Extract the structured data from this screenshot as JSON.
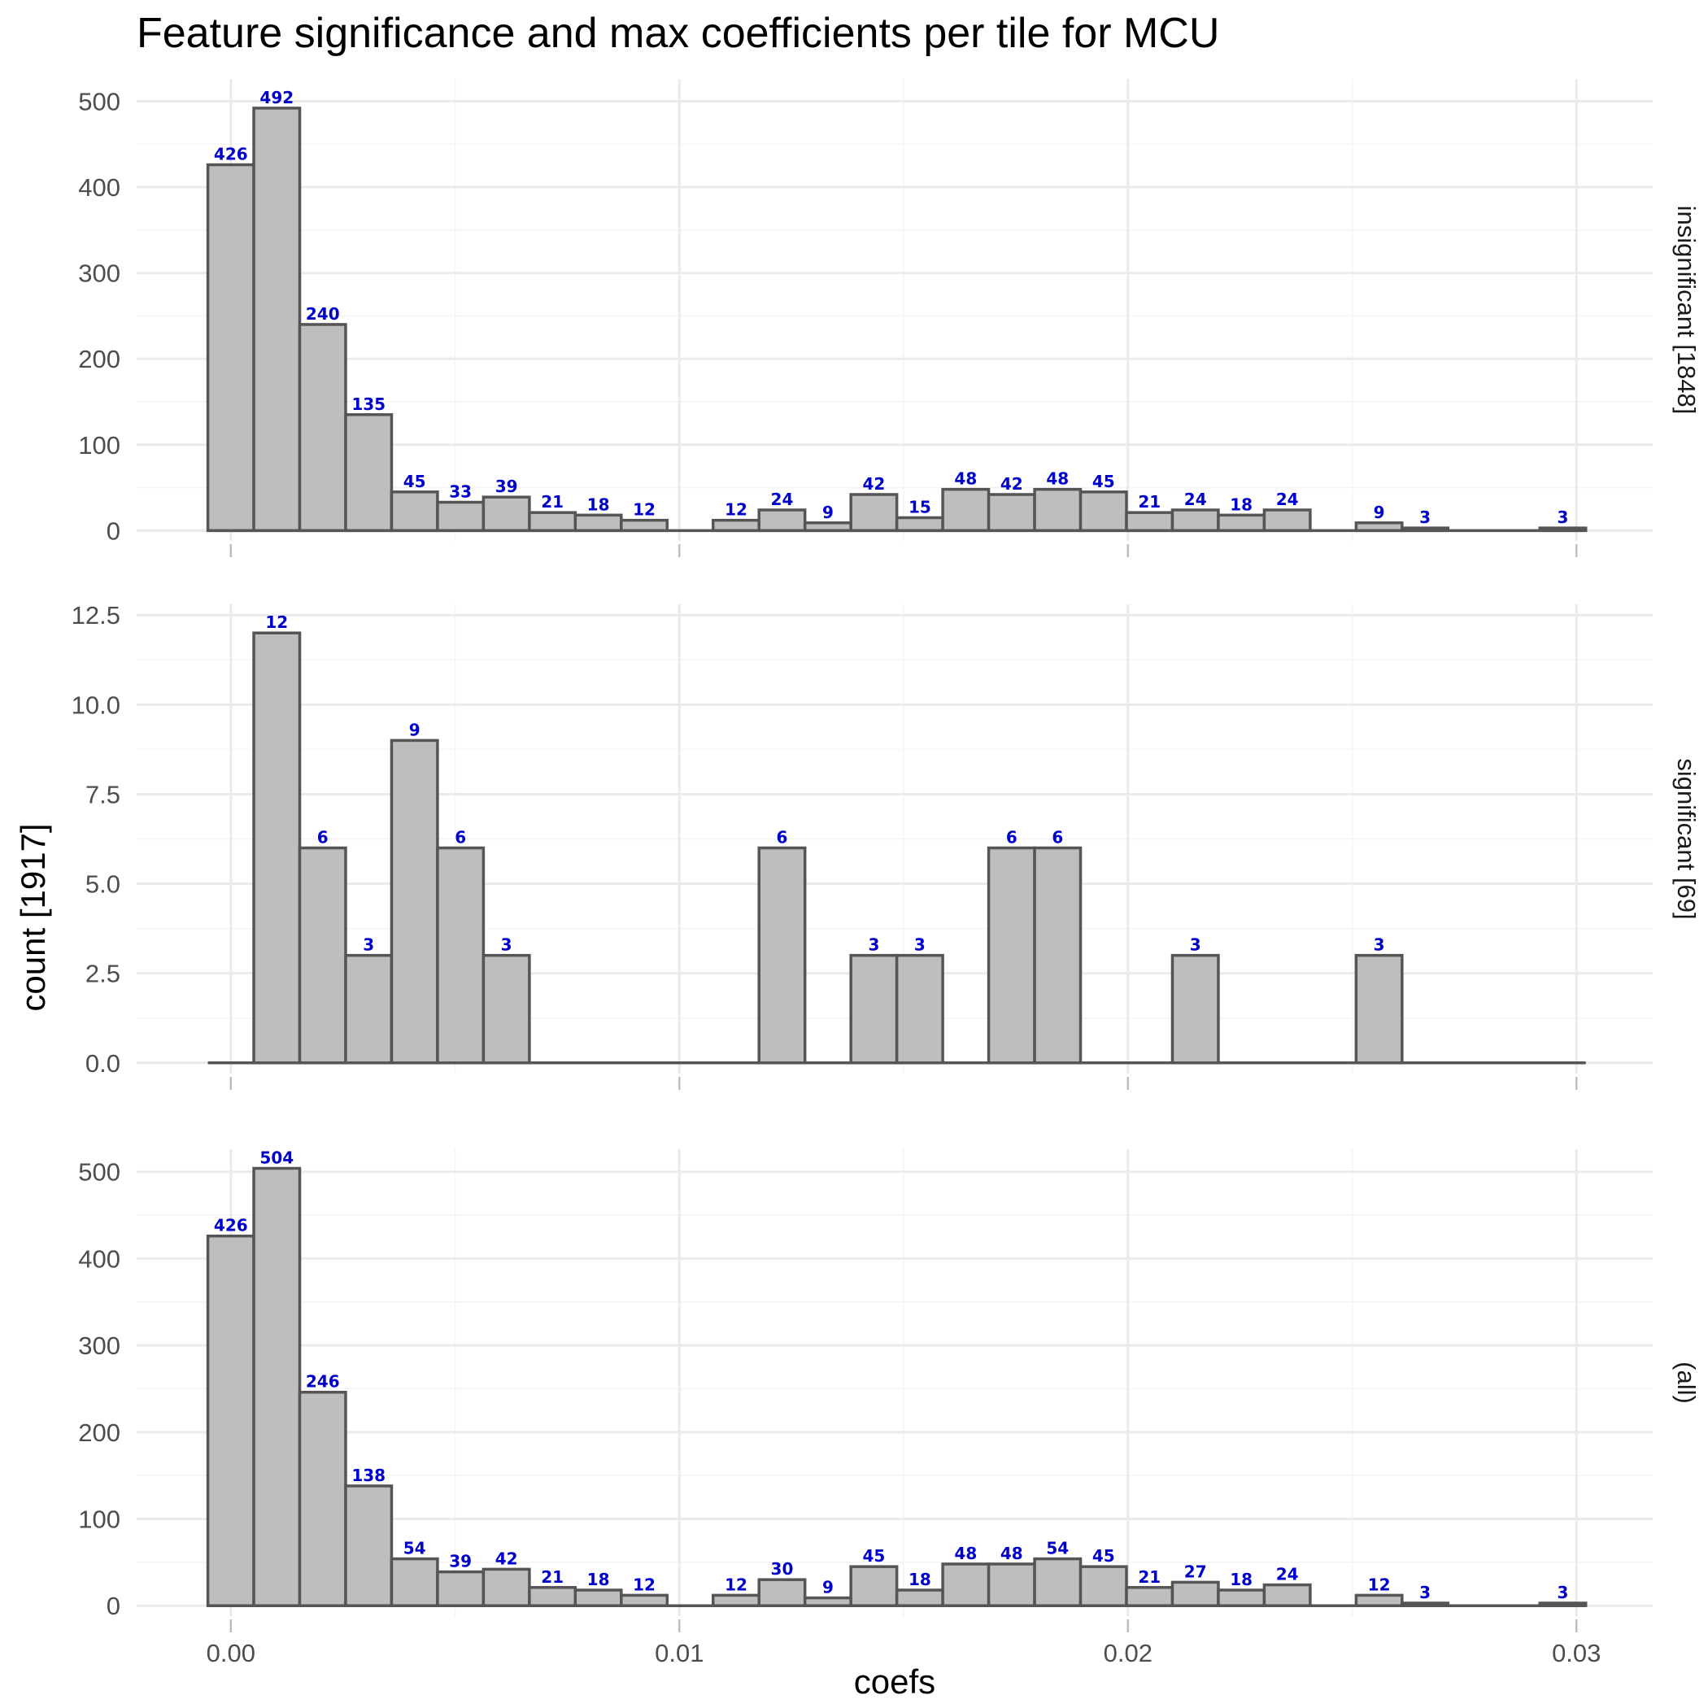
{
  "chart_data": {
    "type": "bar",
    "title": "Feature significance and max coefficients per tile for MCU",
    "xlabel": "coefs",
    "ylabel": "count [1917]",
    "xlim": [
      -0.0021,
      0.0317
    ],
    "x_ticks": [
      0.0,
      0.01,
      0.02,
      0.03
    ],
    "x_tick_labels": [
      "0.00",
      "0.01",
      "0.02",
      "0.03"
    ],
    "bin_width": 0.001024,
    "bin_start": -0.000512,
    "bin_count": 30,
    "label_color": "#0000cc",
    "bar_fill": "#bebebe",
    "bar_stroke": "#555555",
    "grid": true,
    "legend": "none",
    "panels": [
      {
        "strip": "insignificant [1848]",
        "ylim": [
          -12,
          526
        ],
        "y_ticks": [
          0,
          100,
          200,
          300,
          400,
          500
        ],
        "y_tick_labels": [
          "0",
          "100",
          "200",
          "300",
          "400",
          "500"
        ],
        "values": [
          426,
          492,
          240,
          135,
          45,
          33,
          39,
          21,
          18,
          12,
          0,
          12,
          24,
          9,
          42,
          15,
          48,
          42,
          48,
          45,
          21,
          24,
          18,
          24,
          0,
          9,
          3,
          0,
          0,
          3
        ]
      },
      {
        "strip": "significant [69]",
        "ylim": [
          -0.3,
          12.8
        ],
        "y_ticks": [
          0,
          2.5,
          5,
          7.5,
          10,
          12.5
        ],
        "y_tick_labels": [
          "0.0",
          "2.5",
          "5.0",
          "7.5",
          "10.0",
          "12.5"
        ],
        "values": [
          0,
          12,
          6,
          3,
          9,
          6,
          3,
          0,
          0,
          0,
          0,
          0,
          6,
          0,
          3,
          3,
          0,
          6,
          6,
          0,
          0,
          3,
          0,
          0,
          0,
          3,
          0,
          0,
          0,
          0
        ]
      },
      {
        "strip": "(all)",
        "ylim": [
          -12,
          526
        ],
        "y_ticks": [
          0,
          100,
          200,
          300,
          400,
          500
        ],
        "y_tick_labels": [
          "0",
          "100",
          "200",
          "300",
          "400",
          "500"
        ],
        "values": [
          426,
          504,
          246,
          138,
          54,
          39,
          42,
          21,
          18,
          12,
          0,
          12,
          30,
          9,
          45,
          18,
          48,
          48,
          54,
          45,
          21,
          27,
          18,
          24,
          0,
          12,
          3,
          0,
          0,
          3
        ]
      }
    ]
  }
}
